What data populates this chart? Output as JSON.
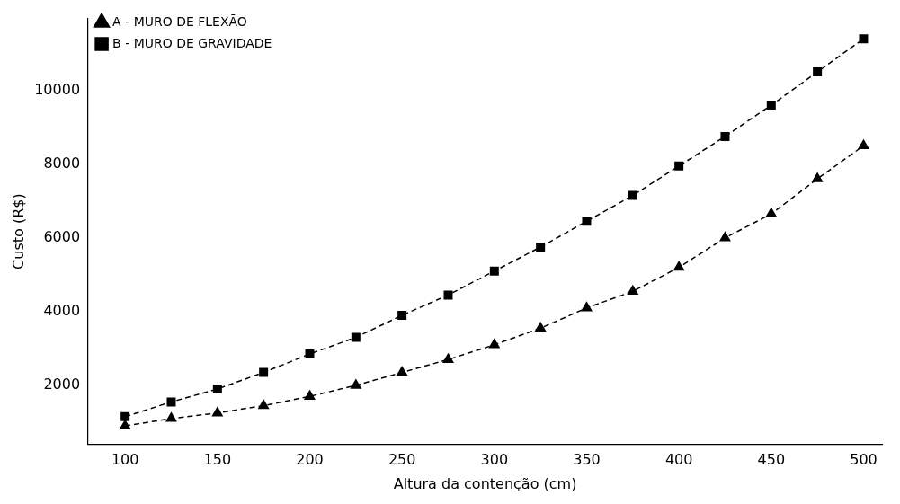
{
  "chart_data": {
    "type": "line",
    "xlabel": "Altura da contenção (cm)",
    "ylabel": "Custo (R$)",
    "x": [
      100,
      125,
      150,
      175,
      200,
      225,
      250,
      275,
      300,
      325,
      350,
      375,
      400,
      425,
      450,
      475,
      500
    ],
    "series": [
      {
        "name": "A - MURO DE FLEXÃO",
        "color": "#000000",
        "marker": "triangle",
        "values": [
          900,
          1100,
          1250,
          1450,
          1700,
          2000,
          2350,
          2700,
          3100,
          3550,
          4100,
          4550,
          5200,
          6000,
          6650,
          7600,
          8500
        ]
      },
      {
        "name": "B - MURO DE GRAVIDADE",
        "color": "#000000",
        "marker": "square",
        "values": [
          1150,
          1550,
          1900,
          2350,
          2850,
          3300,
          3900,
          4450,
          5100,
          5750,
          6450,
          7150,
          7950,
          8750,
          9600,
          10500,
          11400
        ]
      }
    ],
    "xlim": [
      80,
      510
    ],
    "xticks": [
      100,
      150,
      200,
      250,
      300,
      350,
      400,
      450,
      500
    ],
    "ylim": [
      400,
      11950
    ],
    "yticks": [
      2000,
      4000,
      6000,
      8000,
      10000
    ],
    "grid": false,
    "legend": "top left",
    "line_style": "dashed"
  }
}
